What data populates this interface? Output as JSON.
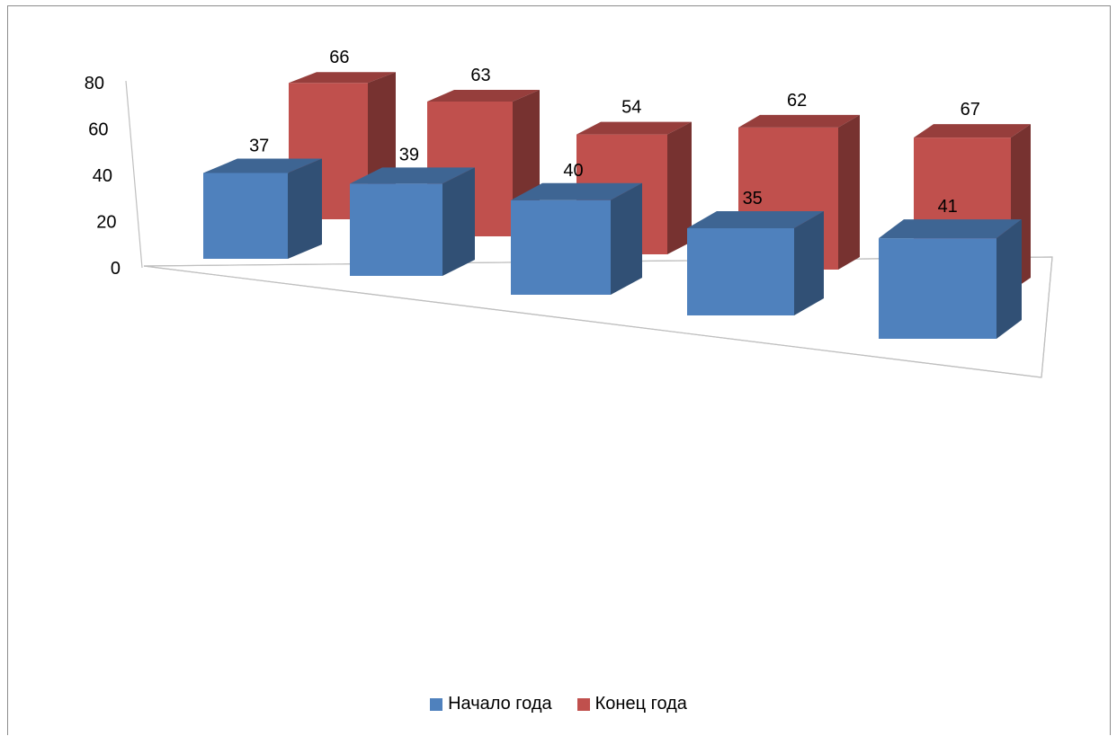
{
  "chart_data": {
    "type": "bar",
    "style": "3d-clustered-columns",
    "categories": [
      "",
      "",
      "",
      "",
      ""
    ],
    "series": [
      {
        "name": "Начало года",
        "values": [
          37,
          39,
          40,
          35,
          41
        ],
        "color": "#4F81BD"
      },
      {
        "name": "Конец года",
        "values": [
          66,
          63,
          54,
          62,
          67
        ],
        "color": "#C0504D"
      }
    ],
    "yticks": [
      "0",
      "20",
      "40",
      "60",
      "80"
    ],
    "ylim": [
      0,
      80
    ],
    "grid": false,
    "legend_position": "bottom"
  },
  "legend": {
    "series0": "Начало года",
    "series1": "Конец года"
  }
}
